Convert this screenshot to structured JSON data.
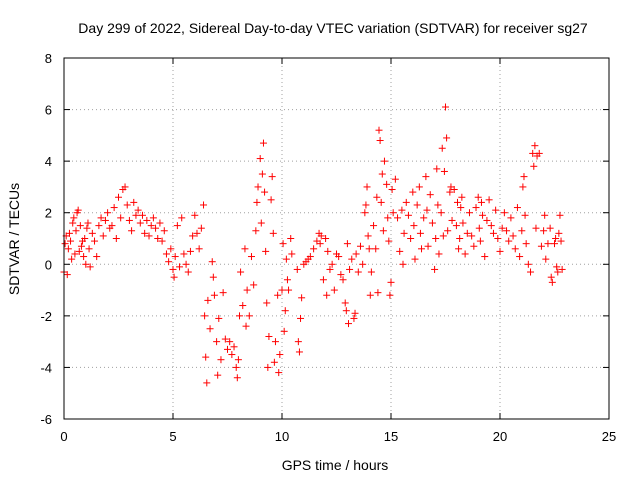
{
  "chart_data": {
    "type": "scatter",
    "title": "Day 299 of 2022, Sidereal Day-to-day VTEC variation (SDTVAR) for receiver sg27",
    "xlabel": "GPS time / hours",
    "ylabel": "SDTVAR / TECUs",
    "xlim": [
      0,
      25
    ],
    "ylim": [
      -6,
      8
    ],
    "xticks": [
      0,
      5,
      10,
      15,
      20,
      25
    ],
    "yticks": [
      -6,
      -4,
      -2,
      0,
      2,
      4,
      6,
      8
    ],
    "xtick_labels": [
      "0",
      "5",
      "10",
      "15",
      "20",
      "25"
    ],
    "ytick_labels": [
      "-6",
      "-4",
      "-2",
      "0",
      "2",
      "4",
      "6",
      "8"
    ],
    "grid": true,
    "marker": "+",
    "color": "#ff0000",
    "series": [
      {
        "name": "SDTVAR",
        "points": [
          [
            0.0,
            -0.3
          ],
          [
            0.05,
            0.8
          ],
          [
            0.1,
            1.1
          ],
          [
            0.15,
            -0.4
          ],
          [
            0.2,
            0.6
          ],
          [
            0.25,
            1.2
          ],
          [
            0.3,
            0.9
          ],
          [
            0.35,
            0.2
          ],
          [
            0.4,
            1.6
          ],
          [
            0.45,
            1.8
          ],
          [
            0.5,
            0.4
          ],
          [
            0.55,
            1.3
          ],
          [
            0.6,
            2.0
          ],
          [
            0.65,
            2.1
          ],
          [
            0.7,
            0.5
          ],
          [
            0.75,
            1.5
          ],
          [
            0.8,
            0.7
          ],
          [
            0.85,
            0.9
          ],
          [
            0.9,
            0.3
          ],
          [
            0.95,
            1.0
          ],
          [
            1.0,
            0.0
          ],
          [
            1.05,
            1.4
          ],
          [
            1.1,
            1.6
          ],
          [
            1.15,
            0.6
          ],
          [
            1.2,
            -0.1
          ],
          [
            1.3,
            1.2
          ],
          [
            1.4,
            0.9
          ],
          [
            1.5,
            0.3
          ],
          [
            1.6,
            1.5
          ],
          [
            1.7,
            1.8
          ],
          [
            1.8,
            1.1
          ],
          [
            1.9,
            1.7
          ],
          [
            2.0,
            2.0
          ],
          [
            2.1,
            1.4
          ],
          [
            2.2,
            1.5
          ],
          [
            2.3,
            2.2
          ],
          [
            2.4,
            1.0
          ],
          [
            2.5,
            2.6
          ],
          [
            2.6,
            1.8
          ],
          [
            2.7,
            2.9
          ],
          [
            2.8,
            3.0
          ],
          [
            2.9,
            2.3
          ],
          [
            3.0,
            1.7
          ],
          [
            3.1,
            1.3
          ],
          [
            3.2,
            2.4
          ],
          [
            3.3,
            1.9
          ],
          [
            3.4,
            2.1
          ],
          [
            3.5,
            1.6
          ],
          [
            3.6,
            1.9
          ],
          [
            3.7,
            1.2
          ],
          [
            3.8,
            1.7
          ],
          [
            3.9,
            1.1
          ],
          [
            4.0,
            1.5
          ],
          [
            4.1,
            1.8
          ],
          [
            4.2,
            1.4
          ],
          [
            4.3,
            1.0
          ],
          [
            4.4,
            1.6
          ],
          [
            4.5,
            0.9
          ],
          [
            4.6,
            1.3
          ],
          [
            4.7,
            0.4
          ],
          [
            4.8,
            0.1
          ],
          [
            4.9,
            0.6
          ],
          [
            5.0,
            -0.2
          ],
          [
            5.05,
            -0.5
          ],
          [
            5.1,
            0.3
          ],
          [
            5.2,
            1.5
          ],
          [
            5.3,
            -0.1
          ],
          [
            5.4,
            1.8
          ],
          [
            5.5,
            0.4
          ],
          [
            5.6,
            0.0
          ],
          [
            5.7,
            -0.3
          ],
          [
            5.8,
            0.5
          ],
          [
            5.9,
            1.1
          ],
          [
            6.0,
            1.9
          ],
          [
            6.1,
            1.2
          ],
          [
            6.2,
            0.6
          ],
          [
            6.3,
            1.4
          ],
          [
            6.4,
            2.3
          ],
          [
            6.45,
            -2.0
          ],
          [
            6.5,
            -3.6
          ],
          [
            6.55,
            -4.6
          ],
          [
            6.6,
            -1.4
          ],
          [
            6.7,
            -2.5
          ],
          [
            6.8,
            0.1
          ],
          [
            6.85,
            -0.5
          ],
          [
            6.9,
            -1.2
          ],
          [
            7.0,
            -3.0
          ],
          [
            7.05,
            -4.3
          ],
          [
            7.1,
            -2.1
          ],
          [
            7.2,
            -3.7
          ],
          [
            7.3,
            -1.1
          ],
          [
            7.4,
            -2.9
          ],
          [
            7.5,
            -3.3
          ],
          [
            7.6,
            -3.0
          ],
          [
            7.7,
            -3.5
          ],
          [
            7.8,
            -3.2
          ],
          [
            7.9,
            -4.0
          ],
          [
            7.95,
            -4.4
          ],
          [
            8.0,
            -3.7
          ],
          [
            8.05,
            -2.0
          ],
          [
            8.1,
            -0.3
          ],
          [
            8.2,
            -1.6
          ],
          [
            8.3,
            0.6
          ],
          [
            8.35,
            -2.4
          ],
          [
            8.4,
            -1.0
          ],
          [
            8.5,
            -2.0
          ],
          [
            8.6,
            0.3
          ],
          [
            8.7,
            -0.8
          ],
          [
            8.8,
            1.3
          ],
          [
            8.85,
            2.4
          ],
          [
            8.9,
            3.0
          ],
          [
            9.0,
            4.1
          ],
          [
            9.05,
            1.6
          ],
          [
            9.1,
            3.5
          ],
          [
            9.15,
            4.7
          ],
          [
            9.2,
            2.8
          ],
          [
            9.25,
            0.5
          ],
          [
            9.3,
            -1.5
          ],
          [
            9.35,
            -4.0
          ],
          [
            9.4,
            -2.8
          ],
          [
            9.5,
            2.5
          ],
          [
            9.55,
            3.4
          ],
          [
            9.6,
            1.2
          ],
          [
            9.65,
            -3.8
          ],
          [
            9.7,
            -3.0
          ],
          [
            9.8,
            -1.2
          ],
          [
            9.85,
            -4.2
          ],
          [
            9.9,
            -3.5
          ],
          [
            10.0,
            -1.0
          ],
          [
            10.05,
            0.8
          ],
          [
            10.1,
            -2.6
          ],
          [
            10.15,
            -1.8
          ],
          [
            10.2,
            0.2
          ],
          [
            10.25,
            -0.6
          ],
          [
            10.3,
            -1.0
          ],
          [
            10.4,
            1.0
          ],
          [
            10.45,
            0.4
          ],
          [
            10.7,
            -0.2
          ],
          [
            10.75,
            -3.0
          ],
          [
            10.8,
            -3.4
          ],
          [
            10.85,
            -2.1
          ],
          [
            10.9,
            -1.3
          ],
          [
            11.0,
            0.0
          ],
          [
            11.1,
            0.1
          ],
          [
            11.2,
            0.2
          ],
          [
            11.3,
            0.3
          ],
          [
            11.45,
            0.6
          ],
          [
            11.6,
            0.9
          ],
          [
            11.7,
            1.2
          ],
          [
            11.75,
            0.8
          ],
          [
            11.8,
            1.1
          ],
          [
            11.9,
            -0.6
          ],
          [
            12.0,
            1.0
          ],
          [
            12.05,
            -1.2
          ],
          [
            12.1,
            0.5
          ],
          [
            12.2,
            -0.2
          ],
          [
            12.3,
            0.0
          ],
          [
            12.4,
            -1.0
          ],
          [
            12.5,
            0.4
          ],
          [
            12.6,
            0.3
          ],
          [
            12.7,
            -0.4
          ],
          [
            12.8,
            -0.6
          ],
          [
            12.9,
            -1.5
          ],
          [
            12.95,
            -1.8
          ],
          [
            13.0,
            0.8
          ],
          [
            13.05,
            -2.3
          ],
          [
            13.1,
            -0.2
          ],
          [
            13.2,
            0.2
          ],
          [
            13.3,
            -2.1
          ],
          [
            13.35,
            -1.9
          ],
          [
            13.4,
            0.4
          ],
          [
            13.5,
            -0.3
          ],
          [
            13.6,
            0.7
          ],
          [
            13.7,
            0.0
          ],
          [
            13.8,
            2.0
          ],
          [
            13.85,
            2.3
          ],
          [
            13.9,
            3.0
          ],
          [
            13.95,
            1.1
          ],
          [
            14.0,
            0.6
          ],
          [
            14.05,
            -1.2
          ],
          [
            14.1,
            -0.3
          ],
          [
            14.2,
            1.5
          ],
          [
            14.3,
            0.6
          ],
          [
            14.35,
            2.6
          ],
          [
            14.4,
            -1.1
          ],
          [
            14.45,
            5.2
          ],
          [
            14.5,
            4.8
          ],
          [
            14.55,
            2.4
          ],
          [
            14.6,
            3.5
          ],
          [
            14.65,
            1.3
          ],
          [
            14.7,
            4.0
          ],
          [
            14.8,
            3.1
          ],
          [
            14.85,
            1.8
          ],
          [
            14.9,
            0.9
          ],
          [
            14.95,
            -1.2
          ],
          [
            15.0,
            -0.7
          ],
          [
            15.05,
            2.9
          ],
          [
            15.1,
            2.0
          ],
          [
            15.2,
            3.3
          ],
          [
            15.3,
            1.8
          ],
          [
            15.4,
            0.5
          ],
          [
            15.5,
            2.1
          ],
          [
            15.55,
            0.0
          ],
          [
            15.6,
            1.2
          ],
          [
            15.7,
            2.4
          ],
          [
            15.8,
            1.9
          ],
          [
            15.9,
            1.0
          ],
          [
            16.0,
            2.8
          ],
          [
            16.05,
            1.5
          ],
          [
            16.1,
            0.2
          ],
          [
            16.2,
            2.3
          ],
          [
            16.3,
            3.0
          ],
          [
            16.35,
            1.2
          ],
          [
            16.4,
            0.6
          ],
          [
            16.5,
            1.8
          ],
          [
            16.6,
            3.4
          ],
          [
            16.65,
            2.1
          ],
          [
            16.7,
            0.7
          ],
          [
            16.8,
            2.7
          ],
          [
            16.9,
            1.6
          ],
          [
            17.0,
            -0.2
          ],
          [
            17.05,
            1.0
          ],
          [
            17.1,
            3.7
          ],
          [
            17.15,
            2.3
          ],
          [
            17.2,
            0.4
          ],
          [
            17.3,
            2.0
          ],
          [
            17.35,
            4.5
          ],
          [
            17.4,
            1.1
          ],
          [
            17.45,
            3.6
          ],
          [
            17.5,
            6.1
          ],
          [
            17.55,
            4.9
          ],
          [
            17.6,
            1.3
          ],
          [
            17.7,
            2.8
          ],
          [
            17.75,
            3.0
          ],
          [
            17.8,
            1.7
          ],
          [
            17.9,
            2.9
          ],
          [
            18.0,
            1.5
          ],
          [
            18.05,
            2.4
          ],
          [
            18.1,
            0.6
          ],
          [
            18.15,
            1.0
          ],
          [
            18.2,
            2.2
          ],
          [
            18.25,
            2.6
          ],
          [
            18.3,
            1.6
          ],
          [
            18.4,
            0.4
          ],
          [
            18.5,
            1.2
          ],
          [
            18.6,
            2.0
          ],
          [
            18.7,
            1.1
          ],
          [
            18.8,
            0.7
          ],
          [
            18.9,
            2.2
          ],
          [
            19.0,
            2.6
          ],
          [
            19.05,
            1.4
          ],
          [
            19.1,
            0.9
          ],
          [
            19.15,
            2.4
          ],
          [
            19.2,
            1.9
          ],
          [
            19.3,
            0.3
          ],
          [
            19.4,
            1.7
          ],
          [
            19.5,
            2.5
          ],
          [
            19.6,
            1.5
          ],
          [
            19.7,
            1.2
          ],
          [
            19.8,
            2.1
          ],
          [
            19.9,
            1.0
          ],
          [
            20.0,
            0.5
          ],
          [
            20.1,
            1.4
          ],
          [
            20.2,
            2.0
          ],
          [
            20.3,
            1.3
          ],
          [
            20.4,
            0.9
          ],
          [
            20.5,
            1.8
          ],
          [
            20.6,
            1.1
          ],
          [
            20.7,
            0.6
          ],
          [
            20.8,
            2.2
          ],
          [
            20.9,
            0.3
          ],
          [
            21.0,
            1.3
          ],
          [
            21.05,
            3.0
          ],
          [
            21.1,
            3.4
          ],
          [
            21.15,
            1.9
          ],
          [
            21.2,
            0.8
          ],
          [
            21.3,
            0.0
          ],
          [
            21.4,
            -0.3
          ],
          [
            21.5,
            4.3
          ],
          [
            21.55,
            3.8
          ],
          [
            21.6,
            4.6
          ],
          [
            21.65,
            1.4
          ],
          [
            21.7,
            4.2
          ],
          [
            21.8,
            4.3
          ],
          [
            21.9,
            0.7
          ],
          [
            22.0,
            1.3
          ],
          [
            22.05,
            1.9
          ],
          [
            22.1,
            0.2
          ],
          [
            22.2,
            0.8
          ],
          [
            22.3,
            1.4
          ],
          [
            22.35,
            -0.5
          ],
          [
            22.4,
            -0.7
          ],
          [
            22.5,
            0.8
          ],
          [
            22.55,
            1.0
          ],
          [
            22.6,
            -0.1
          ],
          [
            22.65,
            -0.3
          ],
          [
            22.7,
            1.2
          ],
          [
            22.75,
            1.9
          ],
          [
            22.8,
            0.9
          ],
          [
            22.85,
            -0.2
          ]
        ]
      }
    ]
  }
}
